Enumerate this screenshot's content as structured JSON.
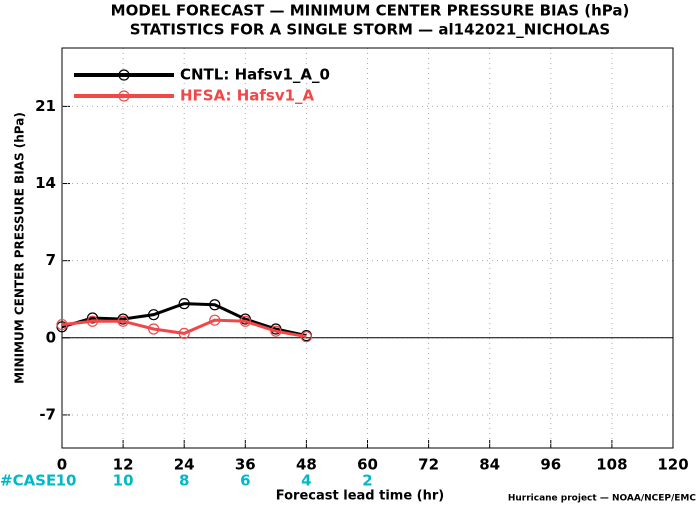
{
  "chart_data": {
    "type": "line",
    "title": "MODEL FORECAST — MINIMUM CENTER PRESSURE BIAS (hPa)",
    "subtitle": "STATISTICS FOR A SINGLE STORM — al142021_NICHOLAS",
    "x_label": "Forecast lead time (hr)",
    "y_label": "MINIMUM CENTER PRESSURE BIAS (hPa)",
    "credit": "Hurricane project — NOAA/NCEP/EMC",
    "x": [
      0,
      6,
      12,
      18,
      24,
      30,
      36,
      42,
      48
    ],
    "series": [
      {
        "name": "CNTL: Hafsv1_A_0",
        "color": "#000000",
        "values": [
          1.0,
          1.8,
          1.7,
          2.1,
          3.1,
          3.0,
          1.7,
          0.8,
          0.2
        ]
      },
      {
        "name": "HFSA: Hafsv1_A",
        "color": "#f04848",
        "values": [
          1.2,
          1.5,
          1.5,
          0.8,
          0.4,
          1.6,
          1.5,
          0.6,
          0.1
        ]
      }
    ],
    "xlim": [
      0,
      120
    ],
    "xticks": [
      0,
      12,
      24,
      36,
      48,
      60,
      72,
      84,
      96,
      108,
      120
    ],
    "ylim": [
      -10,
      26.3
    ],
    "yticks": [
      -7,
      0,
      7,
      14,
      21
    ],
    "grid": true,
    "legend": "upper left",
    "case_label": "#CASE",
    "case_color": "#00b8c8",
    "case_x": [
      0,
      12,
      24,
      36,
      48,
      60
    ],
    "case_counts": [
      10,
      10,
      8,
      6,
      4,
      2
    ]
  }
}
